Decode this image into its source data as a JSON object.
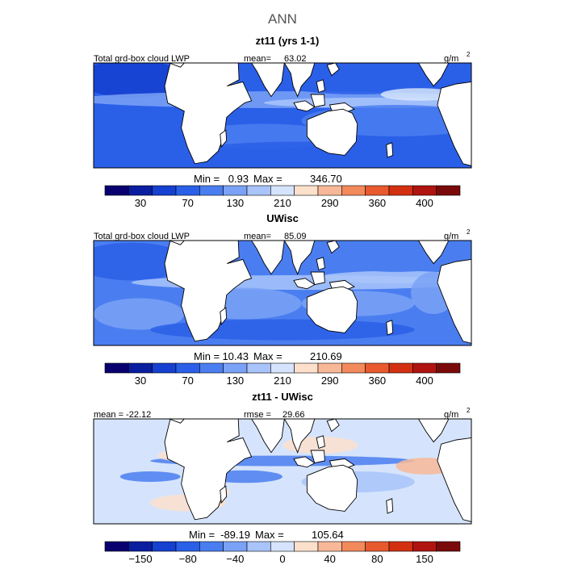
{
  "chart_data": {
    "type": "heatmap",
    "title": "ANN",
    "panels": [
      {
        "subtitle": "zt11 (yrs 1-1)",
        "left_label": "Total grd-box cloud LWP",
        "mean_label": "mean=",
        "mean_value": "63.02",
        "units": "g/m",
        "units_exp": "2",
        "min_label": "Min =",
        "min_value": "0.93",
        "max_label": "Max =",
        "max_value": "346.70",
        "colorbar_ticks": [
          "30",
          "70",
          "130",
          "210",
          "290",
          "360",
          "400"
        ],
        "colors": [
          "#08006e",
          "#0a1ea0",
          "#1540d0",
          "#2a5fe8",
          "#4a7ef0",
          "#7aa2f6",
          "#a9c4fa",
          "#d5e4fc",
          "#fde0cc",
          "#f8b898",
          "#f28a5c",
          "#e85a2e",
          "#d33012",
          "#b01410",
          "#7a0a0a"
        ]
      },
      {
        "subtitle": "UWisc",
        "left_label": "Total grd-box cloud LWP",
        "mean_label": "mean=",
        "mean_value": "85.09",
        "units": "g/m",
        "units_exp": "2",
        "min_label": "Min =",
        "min_value": "10.43",
        "max_label": "Max =",
        "max_value": "210.69",
        "colorbar_ticks": [
          "30",
          "70",
          "130",
          "210",
          "290",
          "360",
          "400"
        ],
        "colors": [
          "#08006e",
          "#0a1ea0",
          "#1540d0",
          "#2a5fe8",
          "#4a7ef0",
          "#7aa2f6",
          "#a9c4fa",
          "#d5e4fc",
          "#fde0cc",
          "#f8b898",
          "#f28a5c",
          "#e85a2e",
          "#d33012",
          "#b01410",
          "#7a0a0a"
        ]
      },
      {
        "subtitle": "zt11 - UWisc",
        "left_label": "mean = -22.12",
        "mean_label": "rmse =",
        "mean_value": "29.66",
        "units": "g/m",
        "units_exp": "2",
        "min_label": "Min =",
        "min_value": "-89.19",
        "max_label": "Max =",
        "max_value": "105.64",
        "colorbar_ticks": [
          "−150",
          "−80",
          "−40",
          "0",
          "40",
          "80",
          "150"
        ],
        "colors": [
          "#08006e",
          "#0a1ea0",
          "#1540d0",
          "#2a5fe8",
          "#4a7ef0",
          "#7aa2f6",
          "#a9c4fa",
          "#d5e4fc",
          "#fde0cc",
          "#f8b898",
          "#f28a5c",
          "#e85a2e",
          "#d33012",
          "#b01410",
          "#7a0a0a"
        ]
      }
    ]
  }
}
